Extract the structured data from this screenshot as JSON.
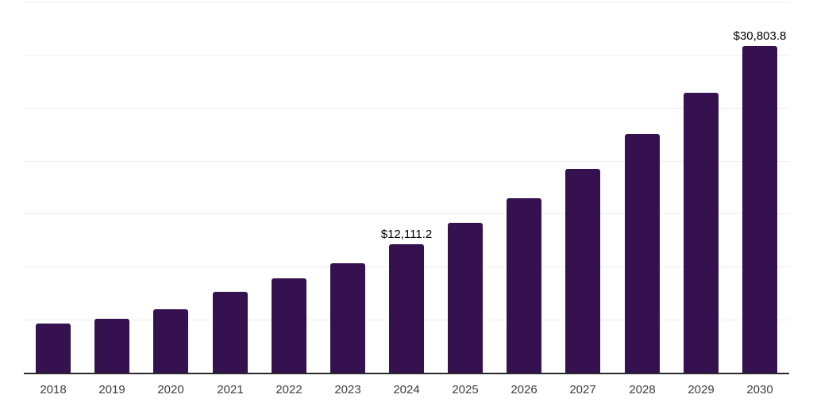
{
  "chart_data": {
    "type": "bar",
    "title": "",
    "xlabel": "",
    "ylabel": "",
    "categories": [
      "2018",
      "2019",
      "2020",
      "2021",
      "2022",
      "2023",
      "2024",
      "2025",
      "2026",
      "2027",
      "2028",
      "2029",
      "2030"
    ],
    "values": [
      4615,
      5065,
      5985,
      7630,
      8900,
      10320,
      12111.2,
      14140,
      16450,
      19250,
      22520,
      26420,
      30803.8
    ],
    "value_labels": {
      "2024": "$12,111.2",
      "2030": "$30,803.8"
    },
    "ylim": [
      0,
      35000
    ],
    "grid_step": 5000,
    "grid": "horizontal-only",
    "y_tick_labels_visible": false,
    "legend_position": "none",
    "colors": {
      "bar": "#361150",
      "axis_line": "#2b2b2b",
      "gridline": "#ededed",
      "tick_label": "#3d3d3d",
      "value_label": "#000000",
      "background": "#ffffff"
    }
  }
}
